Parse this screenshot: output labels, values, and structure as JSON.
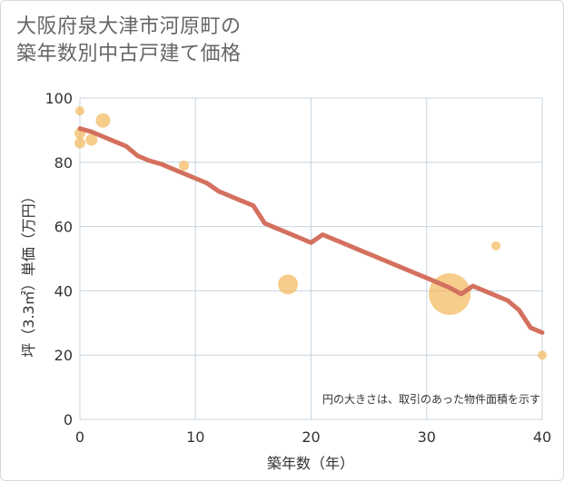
{
  "title_line1": "大阪府泉大津市河原町の",
  "title_line2": "築年数別中古戸建て価格",
  "chart_data": {
    "type": "scatter",
    "title": "大阪府泉大津市河原町の築年数別中古戸建て価格",
    "xlabel": "築年数（年）",
    "ylabel": "坪（3.3㎡）単価（万円）",
    "xlim": [
      0,
      40
    ],
    "ylim": [
      0,
      100
    ],
    "xticks": [
      "0",
      "10",
      "20",
      "30",
      "40"
    ],
    "yticks": [
      "0",
      "20",
      "40",
      "60",
      "80",
      "100"
    ],
    "grid": true,
    "note": "円の大きさは、取引のあった物件面積を示す",
    "colors": {
      "points": "#f2b85a",
      "trend": "#d4705e",
      "grid": "#c8d4df"
    },
    "points": [
      {
        "x": 0,
        "y": 96,
        "size": 1.0
      },
      {
        "x": 0,
        "y": 89,
        "size": 1.2
      },
      {
        "x": 0,
        "y": 86,
        "size": 1.2
      },
      {
        "x": 1,
        "y": 87,
        "size": 1.3
      },
      {
        "x": 2,
        "y": 93,
        "size": 1.6
      },
      {
        "x": 9,
        "y": 79,
        "size": 1.1
      },
      {
        "x": 18,
        "y": 42,
        "size": 2.2
      },
      {
        "x": 32,
        "y": 39,
        "size": 4.6
      },
      {
        "x": 36,
        "y": 54,
        "size": 1.0
      },
      {
        "x": 40,
        "y": 20,
        "size": 1.0
      }
    ],
    "trend": {
      "x": [
        0,
        1,
        2,
        3,
        4,
        5,
        6,
        7,
        8,
        9,
        10,
        11,
        12,
        13,
        14,
        15,
        16,
        17,
        18,
        19,
        20,
        21,
        22,
        23,
        24,
        25,
        26,
        27,
        28,
        29,
        30,
        31,
        32,
        33,
        34,
        35,
        36,
        37,
        38,
        39,
        40
      ],
      "y": [
        90.5,
        89.5,
        88,
        86.5,
        85,
        82,
        80.5,
        79.5,
        78,
        76.5,
        75,
        73.5,
        71,
        69.5,
        68,
        66.5,
        61,
        59.5,
        58,
        56.5,
        55,
        57.5,
        56,
        54.5,
        53,
        51.5,
        50,
        48.5,
        47,
        45.5,
        44,
        42.5,
        41,
        39,
        41.5,
        40,
        38.5,
        37,
        34,
        28.5,
        27
      ]
    }
  }
}
